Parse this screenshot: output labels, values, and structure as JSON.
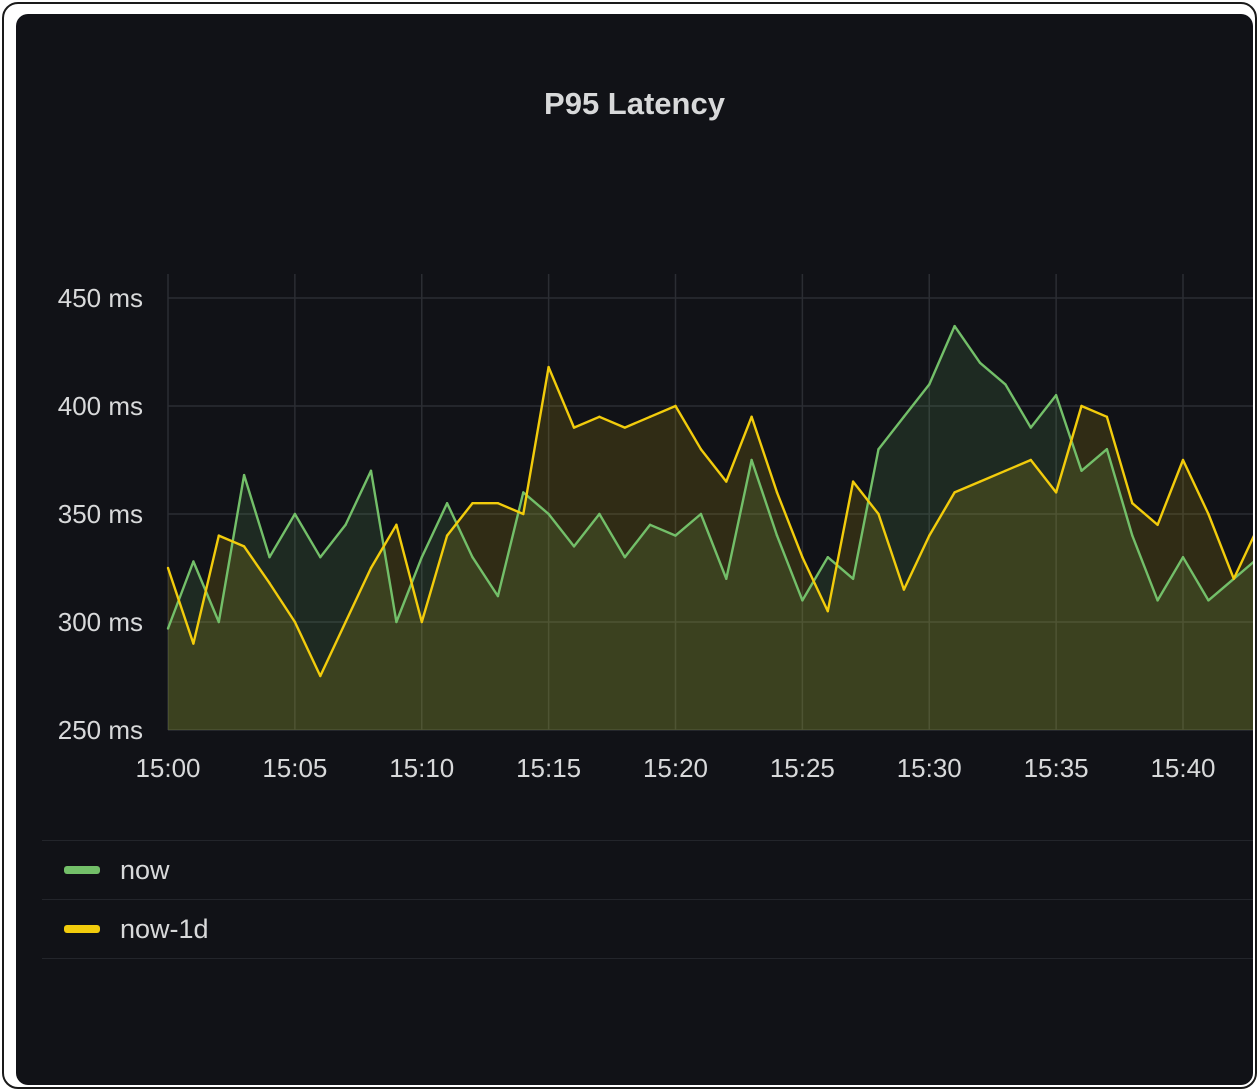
{
  "panel": {
    "title": "P95 Latency"
  },
  "colors": {
    "background": "#111217",
    "grid": "#2b2d33",
    "text": "#d8d9da"
  },
  "chart_data": {
    "type": "area",
    "title": "P95 Latency",
    "x_unit": "time",
    "y_unit": "ms",
    "xlim": [
      "15:00",
      "15:43"
    ],
    "ylim": [
      250,
      455
    ],
    "x_ticks": [
      "15:00",
      "15:05",
      "15:10",
      "15:15",
      "15:20",
      "15:25",
      "15:30",
      "15:35",
      "15:40"
    ],
    "y_ticks": [
      "250 ms",
      "300 ms",
      "350 ms",
      "400 ms",
      "450 ms"
    ],
    "grid": true,
    "legend_position": "bottom",
    "series": [
      {
        "name": "now",
        "color": "#73bf69",
        "x": [
          "15:00",
          "15:01",
          "15:02",
          "15:03",
          "15:04",
          "15:05",
          "15:06",
          "15:07",
          "15:08",
          "15:09",
          "15:10",
          "15:11",
          "15:12",
          "15:13",
          "15:14",
          "15:15",
          "15:16",
          "15:17",
          "15:18",
          "15:19",
          "15:20",
          "15:21",
          "15:22",
          "15:23",
          "15:24",
          "15:25",
          "15:26",
          "15:27",
          "15:28",
          "15:29",
          "15:30",
          "15:31",
          "15:32",
          "15:33",
          "15:34",
          "15:35",
          "15:36",
          "15:37",
          "15:38",
          "15:39",
          "15:40",
          "15:41",
          "15:42",
          "15:43"
        ],
        "values": [
          297,
          328,
          300,
          368,
          330,
          350,
          330,
          345,
          370,
          300,
          330,
          355,
          330,
          312,
          360,
          350,
          335,
          350,
          330,
          345,
          340,
          350,
          320,
          375,
          340,
          310,
          330,
          320,
          380,
          395,
          410,
          437,
          420,
          410,
          390,
          405,
          370,
          380,
          340,
          310,
          330,
          310,
          320,
          330
        ]
      },
      {
        "name": "now-1d",
        "color": "#f2cc0c",
        "x": [
          "15:00",
          "15:01",
          "15:02",
          "15:03",
          "15:04",
          "15:05",
          "15:06",
          "15:07",
          "15:08",
          "15:09",
          "15:10",
          "15:11",
          "15:12",
          "15:13",
          "15:14",
          "15:15",
          "15:16",
          "15:17",
          "15:18",
          "15:19",
          "15:20",
          "15:21",
          "15:22",
          "15:23",
          "15:24",
          "15:25",
          "15:26",
          "15:27",
          "15:28",
          "15:29",
          "15:30",
          "15:31",
          "15:32",
          "15:33",
          "15:34",
          "15:35",
          "15:36",
          "15:37",
          "15:38",
          "15:39",
          "15:40",
          "15:41",
          "15:42",
          "15:43"
        ],
        "values": [
          325,
          290,
          340,
          335,
          318,
          300,
          275,
          300,
          325,
          345,
          300,
          340,
          355,
          355,
          350,
          418,
          390,
          395,
          390,
          395,
          400,
          380,
          365,
          395,
          360,
          330,
          305,
          365,
          350,
          315,
          340,
          360,
          365,
          370,
          375,
          360,
          400,
          395,
          355,
          345,
          375,
          350,
          320,
          345
        ]
      }
    ]
  },
  "legend": [
    {
      "label": "now",
      "color": "#73bf69"
    },
    {
      "label": "now-1d",
      "color": "#f2cc0c"
    }
  ]
}
